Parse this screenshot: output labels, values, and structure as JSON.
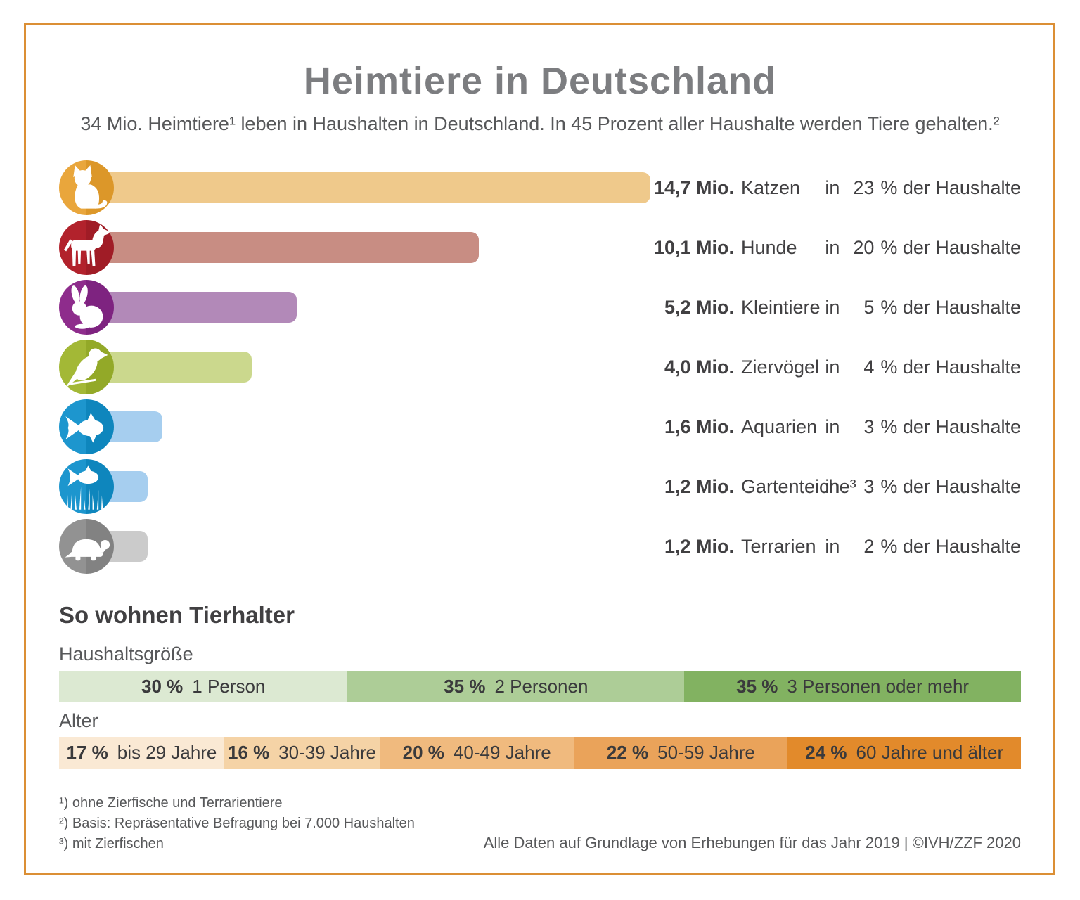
{
  "title": "Heimtiere in Deutschland",
  "subtitle": "34 Mio. Heimtiere¹ leben in Haushalten in Deutschland. In 45 Prozent aller Haushalte werden Tiere gehalten.²",
  "frame_color": "#DB8F35",
  "chart_data": [
    {
      "type": "bar",
      "orientation": "horizontal",
      "title": "Heimtiere in Deutschland",
      "categories": [
        "Katzen",
        "Hunde",
        "Kleintiere",
        "Ziervögel",
        "Aquarien",
        "Gartenteiche³",
        "Terrarien"
      ],
      "values": [
        14.7,
        10.1,
        5.2,
        4.0,
        1.6,
        1.2,
        1.2
      ],
      "values_unit": "Mio.",
      "household_percent": [
        23,
        20,
        5,
        4,
        3,
        3,
        2
      ],
      "xlim": [
        0,
        14.7
      ],
      "household_prefix": "in",
      "household_suffix": "% der Haushalte",
      "rows": [
        {
          "icon": "cat-icon",
          "value_label": "14,7",
          "unit": "Mio.",
          "value": 14.7,
          "name": "Katzen",
          "pct": "23",
          "circle": "#E9A63C",
          "circle_dark": "#DC9729",
          "bar": "#EFC98B"
        },
        {
          "icon": "dog-icon",
          "value_label": "10,1",
          "unit": "Mio.",
          "value": 10.1,
          "name": "Hunde",
          "pct": "20",
          "circle": "#B2222C",
          "circle_dark": "#A01C26",
          "bar": "#C88D83"
        },
        {
          "icon": "rabbit-icon",
          "value_label": "5,2",
          "unit": "Mio.",
          "value": 5.2,
          "name": "Kleintiere",
          "pct": "5",
          "circle": "#8E2C8C",
          "circle_dark": "#7E2380",
          "bar": "#B289B8"
        },
        {
          "icon": "bird-icon",
          "value_label": "4,0",
          "unit": "Mio.",
          "value": 4.0,
          "name": "Ziervögel",
          "pct": "4",
          "circle": "#A3B836",
          "circle_dark": "#93A928",
          "bar": "#CBD88D"
        },
        {
          "icon": "fish-icon",
          "value_label": "1,6",
          "unit": "Mio.",
          "value": 1.6,
          "name": "Aquarien",
          "pct": "3",
          "circle": "#1D96CE",
          "circle_dark": "#0E86BD",
          "bar": "#A6CEEF"
        },
        {
          "icon": "pond-icon",
          "value_label": "1,2",
          "unit": "Mio.",
          "value": 1.2,
          "name": "Gartenteiche³",
          "pct": "3",
          "circle": "#1D96CE",
          "circle_dark": "#0E86BD",
          "bar": "#A6CEEF"
        },
        {
          "icon": "turtle-icon",
          "value_label": "1,2",
          "unit": "Mio.",
          "value": 1.2,
          "name": "Terrarien",
          "pct": "2",
          "circle": "#929292",
          "circle_dark": "#828282",
          "bar": "#CBCBCB"
        }
      ]
    },
    {
      "type": "bar",
      "stacked": true,
      "title": "Haushaltsgröße",
      "categories": [
        "1 Person",
        "2 Personen",
        "3 Personen oder mehr"
      ],
      "values": [
        30,
        35,
        35
      ],
      "segments": [
        {
          "pct": 30,
          "pct_label": "30 %",
          "label": "1 Person",
          "color": "#DCE9D2"
        },
        {
          "pct": 35,
          "pct_label": "35 %",
          "label": "2 Personen",
          "color": "#ADCD97"
        },
        {
          "pct": 35,
          "pct_label": "35 %",
          "label": "3 Personen oder mehr",
          "color": "#82B261"
        }
      ]
    },
    {
      "type": "bar",
      "stacked": true,
      "title": "Alter",
      "categories": [
        "bis 29 Jahre",
        "30-39 Jahre",
        "40-49 Jahre",
        "50-59 Jahre",
        "60 Jahre und älter"
      ],
      "values": [
        17,
        16,
        20,
        22,
        24
      ],
      "segments": [
        {
          "pct": 17,
          "pct_label": "17 %",
          "label": "bis 29 Jahre",
          "color": "#FAE9D4"
        },
        {
          "pct": 16,
          "pct_label": "16 %",
          "label": "30-39 Jahre",
          "color": "#F5D3A6"
        },
        {
          "pct": 20,
          "pct_label": "20 %",
          "label": "40-49 Jahre",
          "color": "#F0BA7E"
        },
        {
          "pct": 22,
          "pct_label": "22 %",
          "label": "50-59 Jahre",
          "color": "#EAA35A"
        },
        {
          "pct": 24,
          "pct_label": "24 %",
          "label": "60 Jahre und älter",
          "color": "#E28A2B"
        }
      ]
    }
  ],
  "section2": {
    "heading": "So wohnen Tierhalter",
    "household_label": "Haushaltsgröße",
    "age_label": "Alter"
  },
  "footnotes": [
    "¹) ohne Zierfische und Terrarientiere",
    "²) Basis: Repräsentative Befragung bei 7.000 Haushalten",
    "³) mit Zierfischen"
  ],
  "source": "Alle Daten auf Grundlage von Erhebungen für das Jahr 2019 | ©IVH/ZZF 2020"
}
